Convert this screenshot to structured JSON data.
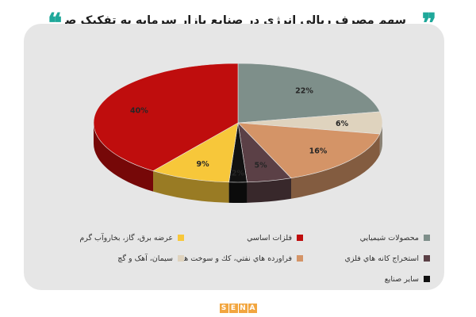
{
  "header": {
    "title": "سهم مصرف ریالی انرژی در صنایع بازار سرمایه به تفکیک صنایع - درصد",
    "quote_open": "❞",
    "quote_close": "❝"
  },
  "chart_data": {
    "type": "pie",
    "title": "سهم مصرف ریالی انرژی در صنایع بازار سرمایه به تفکیک صنایع - درصد",
    "style": "3d",
    "slices": [
      {
        "label": "محصولات شیمیایی",
        "value": 22,
        "display": "22%",
        "color": "#7e8f8a"
      },
      {
        "label": "سیمان، آهک و گچ",
        "value": 6,
        "display": "6%",
        "color": "#dfd3be"
      },
      {
        "label": "فراورده هاي نفتي، كك و سوخت هسته اي",
        "value": 16,
        "display": "16%",
        "color": "#d49467"
      },
      {
        "label": "استخراج کانه هاي فلزي",
        "value": 5,
        "display": "5%",
        "color": "#5b4046"
      },
      {
        "label": "ساير صنايع",
        "value": 2,
        "display": "2%",
        "color": "#111111"
      },
      {
        "label": "عرضه برق، گاز، بخاروآب گرم",
        "value": 9,
        "display": "9%",
        "color": "#f7c73a"
      },
      {
        "label": "فلزات اساسي",
        "value": 40,
        "display": "40%",
        "color": "#bf0d0d"
      }
    ],
    "legend_position": "bottom"
  },
  "legend": [
    {
      "label": "محصولات شيميايي",
      "color": "#7e8f8a"
    },
    {
      "label": "فلزات اساسي",
      "color": "#bf0d0d"
    },
    {
      "label": "عرضه برق، گاز، بخاروآب گرم",
      "color": "#f7c73a"
    },
    {
      "label": "استخراج کانه هاي فلزي",
      "color": "#5b4046"
    },
    {
      "label": "فراورده هاي نفتي، كك و سوخت هسته اي",
      "color": "#d49467"
    },
    {
      "label": "سيمان، آهک و گچ",
      "color": "#dfd3be"
    },
    {
      "label": "ساير صنايع",
      "color": "#111111"
    }
  ],
  "footer": {
    "logo_letters": [
      "S",
      "E",
      "N",
      "A"
    ]
  }
}
